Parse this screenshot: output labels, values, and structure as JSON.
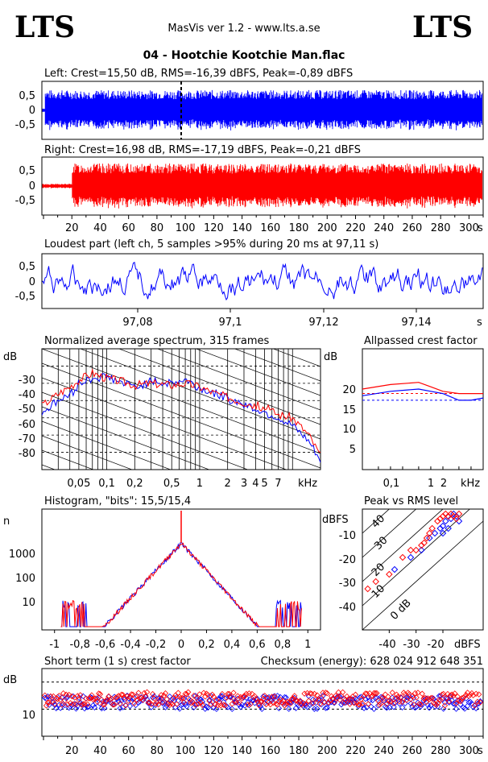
{
  "header": {
    "logo_left": "LTS",
    "logo_right": "LTS",
    "version": "MasVis ver 1.2 - www.lts.a.se",
    "file_title": "04 - Hootchie Kootchie Man.flac"
  },
  "colors": {
    "left": "#0000ff",
    "right": "#ff0000"
  },
  "chart_data": [
    {
      "id": "left_waveform",
      "type": "line",
      "title": "Left: Crest=15,50 dB, RMS=-16,39 dBFS, Peak=-0,89 dBFS",
      "xlim": [
        0,
        310
      ],
      "ylim": [
        -1,
        1
      ],
      "yticks": [
        "0,5",
        "0",
        "-0,5"
      ],
      "envelope_level": 0.7,
      "marker_x": 97.11,
      "series": [
        {
          "color": "#0000ff"
        }
      ]
    },
    {
      "id": "right_waveform",
      "type": "line",
      "title": "Right: Crest=16,98 dB, RMS=-17,19 dBFS, Peak=-0,21 dBFS",
      "xlim": [
        0,
        310
      ],
      "ylim": [
        -1,
        1
      ],
      "xticks": [
        "20",
        "40",
        "60",
        "80",
        "100",
        "120",
        "140",
        "160",
        "180",
        "200",
        "220",
        "240",
        "260",
        "280",
        "300"
      ],
      "xunit": "s",
      "yticks": [
        "0,5",
        "0",
        "-0,5"
      ],
      "series": [
        {
          "color": "#ff0000"
        }
      ]
    },
    {
      "id": "loudest_part",
      "type": "line",
      "title": "Loudest part (left  ch, 5 samples >95% during 20 ms at 97,11 s)",
      "xlim": [
        97.06,
        97.155
      ],
      "ylim": [
        -1,
        1
      ],
      "xticks": [
        "97,08",
        "97,1",
        "97,12",
        "97,14"
      ],
      "xunit": "s",
      "yticks": [
        "0,5",
        "0",
        "-0,5"
      ],
      "series": [
        {
          "color": "#0000ff"
        }
      ]
    },
    {
      "id": "spectrum",
      "type": "line",
      "title": "Normalized average spectrum, 315 frames",
      "ylabel": "dB",
      "yticks": [
        "-30",
        "-40",
        "-50",
        "-60",
        "-70",
        "-80"
      ],
      "xticks": [
        "0,05",
        "0,1",
        "0,2",
        "0,5",
        "1",
        "2",
        "3",
        "4",
        "5",
        "7"
      ],
      "xunit": "kHz",
      "series": [
        {
          "color": "#0000ff",
          "x": [
            0.02,
            0.03,
            0.04,
            0.045,
            0.05,
            0.07,
            0.1,
            0.15,
            0.2,
            0.3,
            0.5,
            0.7,
            1,
            1.5,
            2,
            3,
            5,
            7,
            10,
            15,
            20
          ],
          "y": [
            -57,
            -50,
            -47,
            -44,
            -40,
            -37,
            -36,
            -40,
            -42,
            -39,
            -40,
            -38,
            -43,
            -46,
            -49,
            -52,
            -57,
            -60,
            -65,
            -74,
            -85
          ]
        },
        {
          "color": "#ff0000",
          "x": [
            0.02,
            0.03,
            0.04,
            0.05,
            0.07,
            0.1,
            0.15,
            0.2,
            0.3,
            0.5,
            0.7,
            1,
            1.5,
            2,
            3,
            5,
            7,
            10,
            15,
            20
          ],
          "y": [
            -53,
            -46,
            -42,
            -38,
            -34,
            -37,
            -39,
            -41,
            -40,
            -41,
            -40,
            -42,
            -46,
            -48,
            -51,
            -54,
            -58,
            -60,
            -70,
            -82
          ]
        }
      ]
    },
    {
      "id": "allpassed_crest",
      "type": "line",
      "title": "Allpassed crest factor",
      "ylabel": "dB",
      "ylim": [
        0,
        27
      ],
      "yticks": [
        "20",
        "15",
        "10",
        "5"
      ],
      "xticks": [
        "0,1",
        "1",
        "2"
      ],
      "xunit": "kHz",
      "series": [
        {
          "color": "#0000ff",
          "x": [
            0.02,
            0.1,
            0.5,
            1,
            2,
            5,
            10,
            20
          ],
          "y": [
            16.5,
            17.5,
            18,
            17.5,
            17,
            15.5,
            15.5,
            16
          ]
        },
        {
          "color": "#ff0000",
          "x": [
            0.02,
            0.1,
            0.5,
            1,
            2,
            5,
            10,
            20
          ],
          "y": [
            18,
            19,
            19.5,
            18.5,
            17.5,
            17,
            17,
            17
          ]
        }
      ],
      "reference_lines": [
        {
          "color": "#0000ff",
          "y": 15.5
        },
        {
          "color": "#ff0000",
          "y": 17
        }
      ]
    },
    {
      "id": "histogram",
      "type": "line",
      "title": "Histogram, \"bits\": 15,5/15,4",
      "ylabel": "n",
      "yticks": [
        "1000",
        "100",
        "10"
      ],
      "xticks": [
        "-1",
        "-0,8",
        "-0,6",
        "-0,4",
        "-0,2",
        "0",
        "0,2",
        "0,4",
        "0,6",
        "0,8",
        "1"
      ],
      "xlim": [
        -1.1,
        1.1
      ],
      "peak": 1500
    },
    {
      "id": "peak_vs_rms",
      "type": "scatter",
      "title": "Peak vs RMS level",
      "ylabel": "dBFS",
      "xunit": "dBFS",
      "xlim": [
        -50,
        -5
      ],
      "ylim": [
        -50,
        0
      ],
      "xticks": [
        "-40",
        "-30",
        "-20"
      ],
      "yticks": [
        "-10",
        "-20",
        "-30",
        "-40"
      ],
      "line_labels": [
        "40",
        "30",
        "20",
        "10",
        "0 dB"
      ],
      "series": [
        {
          "color": "#0000ff",
          "points": [
            [
              -38,
              -25
            ],
            [
              -32,
              -20
            ],
            [
              -28,
              -17
            ],
            [
              -25,
              -12
            ],
            [
              -23,
              -10
            ],
            [
              -21,
              -8
            ],
            [
              -20,
              -7
            ],
            [
              -19,
              -5
            ],
            [
              -18,
              -3
            ],
            [
              -17,
              -4
            ],
            [
              -16,
              -2
            ],
            [
              -15,
              -3
            ],
            [
              -14,
              -5
            ],
            [
              -18,
              -8
            ],
            [
              -20,
              -10
            ]
          ]
        },
        {
          "color": "#ff0000",
          "points": [
            [
              -48,
              -33
            ],
            [
              -45,
              -30
            ],
            [
              -40,
              -27
            ],
            [
              -35,
              -20
            ],
            [
              -32,
              -17
            ],
            [
              -30,
              -17
            ],
            [
              -28,
              -15
            ],
            [
              -27,
              -14
            ],
            [
              -26,
              -12
            ],
            [
              -25,
              -10
            ],
            [
              -24,
              -8
            ],
            [
              -22,
              -5
            ],
            [
              -21,
              -4
            ],
            [
              -20,
              -3
            ],
            [
              -19,
              -2
            ],
            [
              -18,
              -3
            ],
            [
              -17,
              -2
            ],
            [
              -16,
              -3
            ],
            [
              -15,
              -4
            ],
            [
              -14,
              -2
            ]
          ]
        }
      ]
    },
    {
      "id": "short_term_crest",
      "type": "scatter",
      "title": "Short term (1 s) crest factor",
      "checksum": "Checksum (energy):   628 024 912 648 351",
      "ylabel": "dB",
      "ylim": [
        0,
        25
      ],
      "yticks": [
        "10"
      ],
      "xticks": [
        "20",
        "40",
        "60",
        "80",
        "100",
        "120",
        "140",
        "160",
        "180",
        "200",
        "220",
        "240",
        "260",
        "280",
        "300"
      ],
      "xunit": "s",
      "dashed_levels": [
        20,
        10
      ],
      "series": [
        {
          "color": "#0000ff",
          "mean": 12.5,
          "spread": 2.5
        },
        {
          "color": "#ff0000",
          "mean": 13.8,
          "spread": 2.5
        }
      ]
    }
  ]
}
